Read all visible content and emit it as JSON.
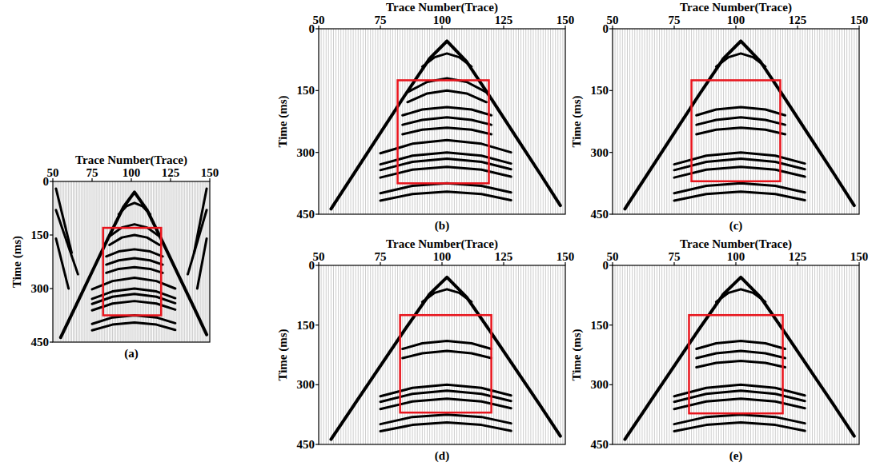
{
  "chart_data": [
    {
      "type": "line",
      "panel": "(a)",
      "x_label": "Trace Number(Trace)",
      "y_label": "Time (ms)",
      "xlim": [
        50,
        150
      ],
      "xticks": [
        50,
        75,
        100,
        125,
        150
      ],
      "ylim": [
        0,
        450
      ],
      "yticks": [
        0,
        150,
        300,
        450
      ],
      "color": "#000000",
      "box": {
        "x": [
          82,
          119
        ],
        "y": [
          130,
          375
        ],
        "color": "#e8141c"
      },
      "series": [
        {
          "x": [
            55,
            65,
            75,
            85,
            95,
            102,
            110,
            120,
            130,
            140,
            148
          ],
          "values": [
            437,
            345,
            253,
            161,
            72,
            30,
            80,
            170,
            262,
            354,
            429
          ]
        },
        {
          "x": [
            92,
            97,
            102,
            107,
            112
          ],
          "values": [
            92,
            69,
            60,
            69,
            92
          ]
        },
        {
          "x": [
            86,
            94,
            102,
            110,
            118
          ],
          "values": [
            154,
            129,
            120,
            129,
            154
          ]
        },
        {
          "x": [
            86,
            94,
            102,
            110,
            118
          ],
          "values": [
            178,
            157,
            150,
            157,
            178
          ]
        },
        {
          "x": [
            84,
            92,
            102,
            112,
            120
          ],
          "values": [
            210,
            196,
            190,
            196,
            210
          ]
        },
        {
          "x": [
            84,
            92,
            102,
            112,
            120
          ],
          "values": [
            233,
            221,
            215,
            221,
            233
          ]
        },
        {
          "x": [
            84,
            92,
            102,
            112,
            120
          ],
          "values": [
            256,
            245,
            240,
            245,
            256
          ]
        },
        {
          "x": [
            75,
            88,
            102,
            116,
            128
          ],
          "values": [
            302,
            279,
            270,
            279,
            300
          ]
        },
        {
          "x": [
            75,
            88,
            102,
            116,
            128
          ],
          "values": [
            329,
            308,
            300,
            308,
            327
          ]
        },
        {
          "x": [
            75,
            88,
            102,
            116,
            128
          ],
          "values": [
            343,
            323,
            315,
            323,
            341
          ]
        },
        {
          "x": [
            75,
            88,
            102,
            116,
            128
          ],
          "values": [
            361,
            342,
            335,
            342,
            359
          ]
        },
        {
          "x": [
            75,
            88,
            102,
            116,
            128
          ],
          "values": [
            399,
            381,
            375,
            381,
            397
          ]
        },
        {
          "x": [
            75,
            88,
            102,
            116,
            128
          ],
          "values": [
            417,
            401,
            395,
            401,
            416
          ]
        },
        {
          "x": [
            52,
            62
          ],
          "values": [
            20,
            200
          ]
        },
        {
          "x": [
            52,
            66
          ],
          "values": [
            80,
            260
          ]
        },
        {
          "x": [
            52,
            60
          ],
          "values": [
            160,
            300
          ]
        },
        {
          "x": [
            148,
            140
          ],
          "values": [
            20,
            200
          ]
        },
        {
          "x": [
            148,
            136
          ],
          "values": [
            80,
            260
          ]
        },
        {
          "x": [
            148,
            142
          ],
          "values": [
            160,
            300
          ]
        }
      ]
    },
    {
      "type": "line",
      "panel": "(b)",
      "x_label": "Trace Number(Trace)",
      "y_label": "Time (ms)",
      "xlim": [
        50,
        150
      ],
      "xticks": [
        50,
        75,
        100,
        125,
        150
      ],
      "ylim": [
        0,
        450
      ],
      "yticks": [
        0,
        150,
        300,
        450
      ],
      "color": "#000000",
      "box": {
        "x": [
          82,
          119
        ],
        "y": [
          125,
          375
        ],
        "color": "#e8141c"
      },
      "series": [
        {
          "x": [
            55,
            65,
            75,
            85,
            95,
            102,
            110,
            120,
            130,
            140,
            148
          ],
          "values": [
            437,
            345,
            253,
            161,
            72,
            30,
            80,
            170,
            262,
            354,
            429
          ]
        },
        {
          "x": [
            92,
            97,
            102,
            107,
            112
          ],
          "values": [
            92,
            69,
            60,
            69,
            92
          ]
        },
        {
          "x": [
            86,
            94,
            102,
            110,
            118
          ],
          "values": [
            154,
            129,
            120,
            129,
            154
          ]
        },
        {
          "x": [
            86,
            94,
            102,
            110,
            118
          ],
          "values": [
            178,
            157,
            150,
            157,
            178
          ]
        },
        {
          "x": [
            84,
            92,
            102,
            112,
            120
          ],
          "values": [
            210,
            196,
            190,
            196,
            210
          ]
        },
        {
          "x": [
            84,
            92,
            102,
            112,
            120
          ],
          "values": [
            233,
            221,
            215,
            221,
            233
          ]
        },
        {
          "x": [
            84,
            92,
            102,
            112,
            120
          ],
          "values": [
            256,
            245,
            240,
            245,
            256
          ]
        },
        {
          "x": [
            75,
            88,
            102,
            116,
            128
          ],
          "values": [
            302,
            279,
            270,
            279,
            300
          ]
        },
        {
          "x": [
            75,
            88,
            102,
            116,
            128
          ],
          "values": [
            329,
            308,
            300,
            308,
            327
          ]
        },
        {
          "x": [
            75,
            88,
            102,
            116,
            128
          ],
          "values": [
            343,
            323,
            315,
            323,
            341
          ]
        },
        {
          "x": [
            75,
            88,
            102,
            116,
            128
          ],
          "values": [
            361,
            342,
            335,
            342,
            359
          ]
        },
        {
          "x": [
            75,
            88,
            102,
            116,
            128
          ],
          "values": [
            399,
            381,
            375,
            381,
            397
          ]
        },
        {
          "x": [
            75,
            88,
            102,
            116,
            128
          ],
          "values": [
            417,
            401,
            395,
            401,
            416
          ]
        }
      ]
    },
    {
      "type": "line",
      "panel": "(c)",
      "x_label": "Trace Number(Trace)",
      "y_label": "Time (ms)",
      "xlim": [
        50,
        150
      ],
      "xticks": [
        50,
        75,
        100,
        125,
        150
      ],
      "ylim": [
        0,
        450
      ],
      "yticks": [
        0,
        150,
        300,
        450
      ],
      "color": "#000000",
      "box": {
        "x": [
          82,
          118
        ],
        "y": [
          125,
          370
        ],
        "color": "#e8141c"
      },
      "series": [
        {
          "x": [
            55,
            65,
            75,
            85,
            95,
            102,
            110,
            120,
            130,
            140,
            148
          ],
          "values": [
            437,
            345,
            253,
            161,
            72,
            30,
            80,
            170,
            262,
            354,
            429
          ]
        },
        {
          "x": [
            92,
            97,
            102,
            107,
            112
          ],
          "values": [
            92,
            69,
            60,
            69,
            92
          ]
        },
        {
          "x": [
            84,
            92,
            102,
            112,
            120
          ],
          "values": [
            210,
            196,
            190,
            196,
            210
          ]
        },
        {
          "x": [
            84,
            92,
            102,
            112,
            120
          ],
          "values": [
            233,
            221,
            215,
            221,
            233
          ]
        },
        {
          "x": [
            84,
            92,
            102,
            112,
            120
          ],
          "values": [
            256,
            245,
            240,
            245,
            256
          ]
        },
        {
          "x": [
            75,
            88,
            102,
            116,
            128
          ],
          "values": [
            329,
            308,
            300,
            308,
            327
          ]
        },
        {
          "x": [
            75,
            88,
            102,
            116,
            128
          ],
          "values": [
            343,
            323,
            315,
            323,
            341
          ]
        },
        {
          "x": [
            75,
            88,
            102,
            116,
            128
          ],
          "values": [
            361,
            342,
            335,
            342,
            359
          ]
        },
        {
          "x": [
            75,
            88,
            102,
            116,
            128
          ],
          "values": [
            399,
            381,
            375,
            381,
            397
          ]
        },
        {
          "x": [
            75,
            88,
            102,
            116,
            128
          ],
          "values": [
            417,
            401,
            395,
            401,
            416
          ]
        }
      ]
    },
    {
      "type": "line",
      "panel": "(d)",
      "x_label": "Trace Number(Trace)",
      "y_label": "Time (ms)",
      "xlim": [
        50,
        150
      ],
      "xticks": [
        50,
        75,
        100,
        125,
        150
      ],
      "ylim": [
        0,
        450
      ],
      "yticks": [
        0,
        150,
        300,
        450
      ],
      "color": "#000000",
      "box": {
        "x": [
          83,
          120
        ],
        "y": [
          125,
          370
        ],
        "color": "#e8141c"
      },
      "series": [
        {
          "x": [
            55,
            65,
            75,
            85,
            95,
            102,
            110,
            120,
            130,
            140,
            148
          ],
          "values": [
            437,
            345,
            253,
            161,
            72,
            30,
            80,
            170,
            262,
            354,
            429
          ]
        },
        {
          "x": [
            92,
            97,
            102,
            107,
            112
          ],
          "values": [
            92,
            69,
            60,
            69,
            92
          ]
        },
        {
          "x": [
            84,
            92,
            102,
            112,
            120
          ],
          "values": [
            210,
            196,
            190,
            196,
            210
          ]
        },
        {
          "x": [
            84,
            92,
            102,
            112,
            120
          ],
          "values": [
            233,
            221,
            215,
            221,
            233
          ]
        },
        {
          "x": [
            75,
            88,
            102,
            116,
            128
          ],
          "values": [
            329,
            308,
            300,
            308,
            327
          ]
        },
        {
          "x": [
            75,
            88,
            102,
            116,
            128
          ],
          "values": [
            343,
            323,
            315,
            323,
            341
          ]
        },
        {
          "x": [
            75,
            88,
            102,
            116,
            128
          ],
          "values": [
            361,
            342,
            335,
            342,
            359
          ]
        },
        {
          "x": [
            75,
            88,
            102,
            116,
            128
          ],
          "values": [
            399,
            381,
            375,
            381,
            397
          ]
        },
        {
          "x": [
            75,
            88,
            102,
            116,
            128
          ],
          "values": [
            417,
            401,
            395,
            401,
            416
          ]
        }
      ]
    },
    {
      "type": "line",
      "panel": "(e)",
      "x_label": "Trace Number(Trace)",
      "y_label": "Time (ms)",
      "xlim": [
        50,
        150
      ],
      "xticks": [
        50,
        75,
        100,
        125,
        150
      ],
      "ylim": [
        0,
        450
      ],
      "yticks": [
        0,
        150,
        300,
        450
      ],
      "color": "#000000",
      "box": {
        "x": [
          81,
          119
        ],
        "y": [
          125,
          372
        ],
        "color": "#e8141c"
      },
      "series": [
        {
          "x": [
            55,
            65,
            75,
            85,
            95,
            102,
            110,
            120,
            130,
            140,
            148
          ],
          "values": [
            437,
            345,
            253,
            161,
            72,
            30,
            80,
            170,
            262,
            354,
            429
          ]
        },
        {
          "x": [
            92,
            97,
            102,
            107,
            112
          ],
          "values": [
            92,
            69,
            60,
            69,
            92
          ]
        },
        {
          "x": [
            84,
            92,
            102,
            112,
            120
          ],
          "values": [
            210,
            196,
            190,
            196,
            210
          ]
        },
        {
          "x": [
            84,
            92,
            102,
            112,
            120
          ],
          "values": [
            233,
            221,
            215,
            221,
            233
          ]
        },
        {
          "x": [
            84,
            92,
            102,
            112,
            120
          ],
          "values": [
            256,
            245,
            240,
            245,
            256
          ]
        },
        {
          "x": [
            75,
            88,
            102,
            116,
            128
          ],
          "values": [
            329,
            308,
            300,
            308,
            327
          ]
        },
        {
          "x": [
            75,
            88,
            102,
            116,
            128
          ],
          "values": [
            343,
            323,
            315,
            323,
            341
          ]
        },
        {
          "x": [
            75,
            88,
            102,
            116,
            128
          ],
          "values": [
            361,
            342,
            335,
            342,
            359
          ]
        },
        {
          "x": [
            75,
            88,
            102,
            116,
            128
          ],
          "values": [
            399,
            381,
            375,
            381,
            397
          ]
        },
        {
          "x": [
            75,
            88,
            102,
            116,
            128
          ],
          "values": [
            417,
            401,
            395,
            401,
            416
          ]
        }
      ]
    }
  ]
}
